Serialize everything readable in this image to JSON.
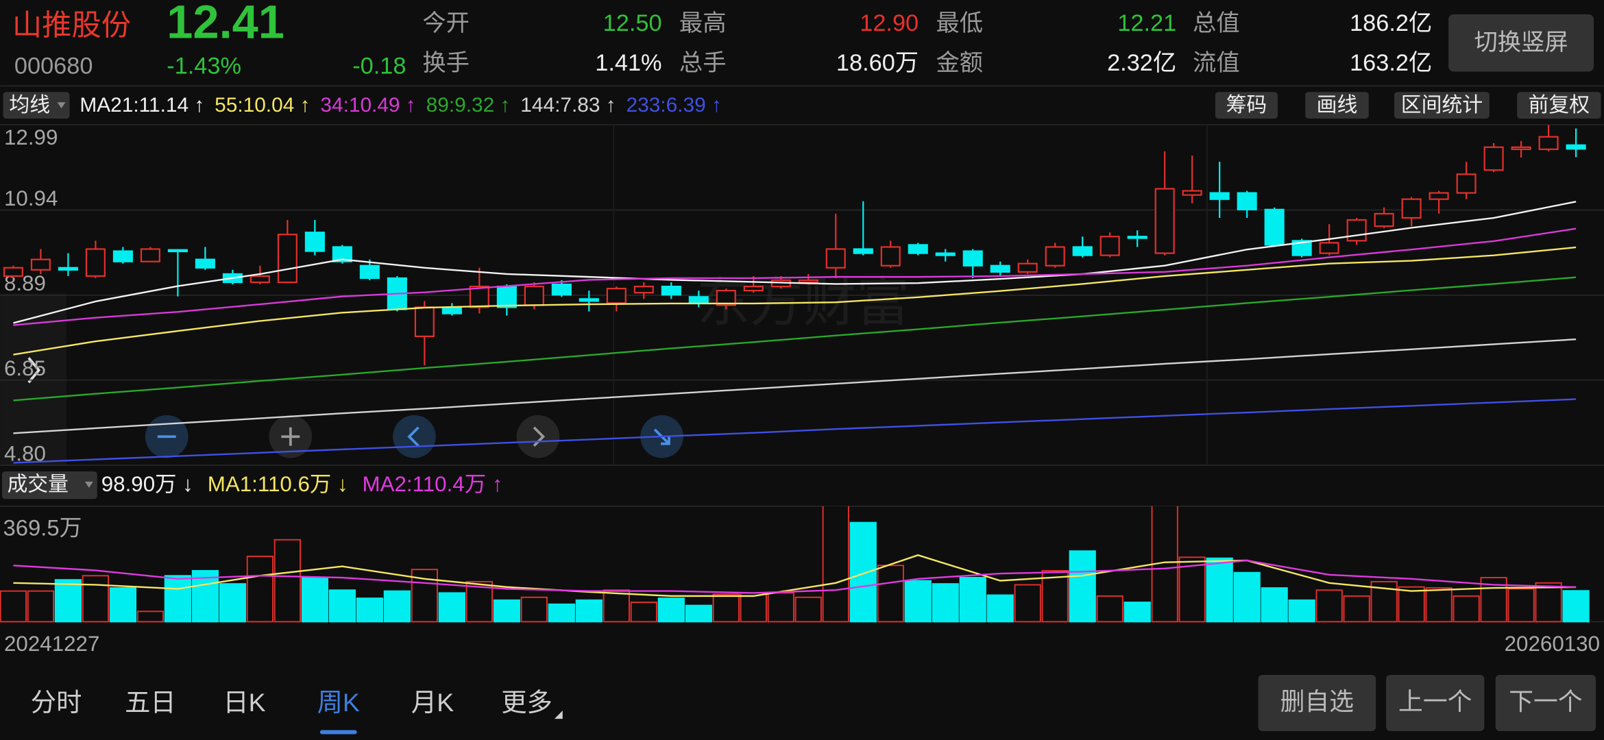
{
  "header": {
    "name": "山推股份",
    "price": "12.41",
    "change_pct": "-1.43%",
    "change": "-0.18",
    "code": "000680",
    "stats": [
      {
        "label": "今开",
        "value": "12.50",
        "color": "#2fc23a"
      },
      {
        "label": "最高",
        "value": "12.90",
        "color": "#e8302c"
      },
      {
        "label": "最低",
        "value": "12.21",
        "color": "#2fc23a"
      },
      {
        "label": "总值",
        "value": "186.2亿",
        "color": "#f0f0f0"
      },
      {
        "label": "换手",
        "value": "1.41%",
        "color": "#f0f0f0"
      },
      {
        "label": "总手",
        "value": "18.60万",
        "color": "#f0f0f0"
      },
      {
        "label": "金额",
        "value": "2.32亿",
        "color": "#f0f0f0"
      },
      {
        "label": "流值",
        "value": "163.2亿",
        "color": "#f0f0f0"
      }
    ],
    "orientation_button": "切换竖屏"
  },
  "toolbar": {
    "indicator": "均线",
    "tools": [
      "筹码",
      "画线",
      "区间统计",
      "前复权"
    ]
  },
  "chart_data": {
    "type": "candlestick",
    "watermark": "东方财富",
    "up_color": "#e0302c",
    "down_color": "#00eef0",
    "x_labels": [
      "20241227",
      "20260130"
    ],
    "ylim": [
      4.8,
      12.99
    ],
    "yticks": [
      12.99,
      10.94,
      8.89,
      6.85,
      {
        "value": 4.8,
        "label": "4.80"
      }
    ],
    "open": [
      9.35,
      9.5,
      9.55,
      9.35,
      9.95,
      9.7,
      9.98,
      9.75,
      9.4,
      9.2,
      9.2,
      10.4,
      10.05,
      9.6,
      9.3,
      7.9,
      8.6,
      8.6,
      9.1,
      8.65,
      9.15,
      8.8,
      8.7,
      8.95,
      9.1,
      8.85,
      8.65,
      9.0,
      9.1,
      9.2,
      9.55,
      10.0,
      9.6,
      10.1,
      9.9,
      9.95,
      9.6,
      9.45,
      9.6,
      10.05,
      9.85,
      10.3,
      9.9,
      11.3,
      11.35,
      11.35,
      10.95,
      10.2,
      9.9,
      10.2,
      10.55,
      10.75,
      11.2,
      11.35,
      11.9,
      12.4,
      12.4,
      12.5
    ],
    "high": [
      9.6,
      10.0,
      9.9,
      10.2,
      10.05,
      10.05,
      10.0,
      10.05,
      9.5,
      9.6,
      10.7,
      10.7,
      10.1,
      9.75,
      9.35,
      8.75,
      8.7,
      9.55,
      9.15,
      9.2,
      9.25,
      9.0,
      9.1,
      9.2,
      9.2,
      9.0,
      9.05,
      9.35,
      9.35,
      9.4,
      10.85,
      11.15,
      10.2,
      10.15,
      10.0,
      10.0,
      9.7,
      9.75,
      10.15,
      10.3,
      10.4,
      10.45,
      12.35,
      12.25,
      12.1,
      11.4,
      11.0,
      10.25,
      10.6,
      10.75,
      11.0,
      11.25,
      11.4,
      12.1,
      12.55,
      12.6,
      12.99,
      12.9
    ],
    "low": [
      9.3,
      9.4,
      9.35,
      9.3,
      9.65,
      9.7,
      8.86,
      9.5,
      9.15,
      9.15,
      9.2,
      9.85,
      9.65,
      9.25,
      8.5,
      7.2,
      8.4,
      8.45,
      8.4,
      8.55,
      8.85,
      8.5,
      8.5,
      8.8,
      8.8,
      8.6,
      8.55,
      8.95,
      9.05,
      9.15,
      9.3,
      9.85,
      9.55,
      9.85,
      9.7,
      9.3,
      9.35,
      9.4,
      9.55,
      9.8,
      9.8,
      10.05,
      9.85,
      11.1,
      10.75,
      10.75,
      10.05,
      9.8,
      9.85,
      10.1,
      10.5,
      10.55,
      10.85,
      11.2,
      11.85,
      12.2,
      12.35,
      12.21
    ],
    "close": [
      9.55,
      9.75,
      9.5,
      10.0,
      9.7,
      10.0,
      9.95,
      9.55,
      9.2,
      9.35,
      10.35,
      9.95,
      9.7,
      9.3,
      8.55,
      8.6,
      8.45,
      9.1,
      8.6,
      9.1,
      8.9,
      8.75,
      9.05,
      9.1,
      8.9,
      8.7,
      9.0,
      9.1,
      9.25,
      9.25,
      10.0,
      9.9,
      10.05,
      9.9,
      9.85,
      9.6,
      9.45,
      9.65,
      10.05,
      9.85,
      10.3,
      10.28,
      11.45,
      11.4,
      11.2,
      10.95,
      10.1,
      9.85,
      10.15,
      10.7,
      10.85,
      11.2,
      11.35,
      11.8,
      12.45,
      12.45,
      12.7,
      12.41
    ],
    "ma": [
      {
        "label": "MA21:11.14 ↑",
        "color": "#f2f2f2",
        "values": [
          8.22,
          8.74,
          9.11,
          9.4,
          9.75,
          9.55,
          9.4,
          9.33,
          9.26,
          9.21,
          9.16,
          9.18,
          9.28,
          9.4,
          9.6,
          9.99,
          10.24,
          10.51,
          10.75,
          11.14
        ]
      },
      {
        "label": "55:10.04 ↑",
        "color": "#f5e663",
        "values": [
          7.46,
          7.78,
          8.03,
          8.27,
          8.47,
          8.59,
          8.64,
          8.67,
          8.69,
          8.69,
          8.72,
          8.84,
          8.99,
          9.16,
          9.35,
          9.5,
          9.65,
          9.72,
          9.85,
          10.04
        ]
      },
      {
        "label": "34:10.49 ↑",
        "color": "#d83ad8",
        "values": [
          8.17,
          8.35,
          8.49,
          8.67,
          8.86,
          8.96,
          9.11,
          9.26,
          9.3,
          9.3,
          9.33,
          9.33,
          9.35,
          9.4,
          9.45,
          9.6,
          9.8,
          9.99,
          10.19,
          10.49
        ]
      },
      {
        "label": "89:9.32 ↑",
        "color": "#2aa82a",
        "values": [
          6.36,
          6.52,
          6.67,
          6.83,
          6.98,
          7.14,
          7.29,
          7.45,
          7.61,
          7.76,
          7.92,
          8.07,
          8.23,
          8.38,
          8.54,
          8.7,
          8.85,
          9.01,
          9.16,
          9.32
        ]
      },
      {
        "label": "144:7.83 ↑",
        "color": "#d4d4d4",
        "values": [
          5.57,
          5.69,
          5.81,
          5.93,
          6.05,
          6.16,
          6.28,
          6.4,
          6.52,
          6.64,
          6.76,
          6.88,
          7.0,
          7.12,
          7.24,
          7.35,
          7.47,
          7.59,
          7.71,
          7.83
        ]
      },
      {
        "label": "233:6.39 ↑",
        "color": "#4050e6",
        "values": [
          4.86,
          4.94,
          5.02,
          5.1,
          5.18,
          5.26,
          5.34,
          5.42,
          5.5,
          5.58,
          5.67,
          5.75,
          5.83,
          5.91,
          5.99,
          6.07,
          6.15,
          6.23,
          6.31,
          6.39
        ]
      }
    ],
    "volume": {
      "indicator": "成交量",
      "ylim": [
        0,
        369.5
      ],
      "yticks": [
        {
          "value": 369.5,
          "label": "369.5万"
        }
      ],
      "values": [
        98,
        98,
        134,
        147,
        108,
        33,
        147,
        163,
        121,
        209,
        262,
        141,
        101,
        75,
        98,
        167,
        92,
        128,
        69,
        78,
        56,
        69,
        101,
        62,
        75,
        52,
        88,
        92,
        92,
        78,
        420,
        317,
        180,
        131,
        121,
        141,
        85,
        118,
        163,
        226,
        82,
        62,
        450,
        206,
        203,
        157,
        108,
        69,
        101,
        82,
        128,
        111,
        108,
        82,
        141,
        105,
        124,
        98.9
      ],
      "legend": [
        {
          "label": "98.90万 ↓",
          "color": "#f2f2f2"
        },
        {
          "label": "MA1:110.6万 ↓",
          "color": "#f5e663"
        },
        {
          "label": "MA2:110.4万 ↑",
          "color": "#e03ae0"
        }
      ],
      "ma": [
        {
          "color": "#f5e663",
          "values": [
            124,
            118,
            105,
            147,
            177,
            137,
            111,
            95,
            82,
            82,
            124,
            213,
            131,
            147,
            190,
            196,
            124,
            98,
            108,
            110.6
          ]
        },
        {
          "color": "#e03ae0",
          "values": [
            180,
            164,
            137,
            147,
            141,
            124,
            105,
            98,
            98,
            92,
            101,
            137,
            154,
            160,
            170,
            196,
            150,
            137,
            118,
            110.4
          ]
        }
      ]
    }
  },
  "bottom": {
    "tabs": [
      "分时",
      "五日",
      "日K",
      "周K",
      "月K",
      "更多"
    ],
    "active_tab": 3,
    "buttons": [
      "删自选",
      "上一个",
      "下一个"
    ]
  }
}
